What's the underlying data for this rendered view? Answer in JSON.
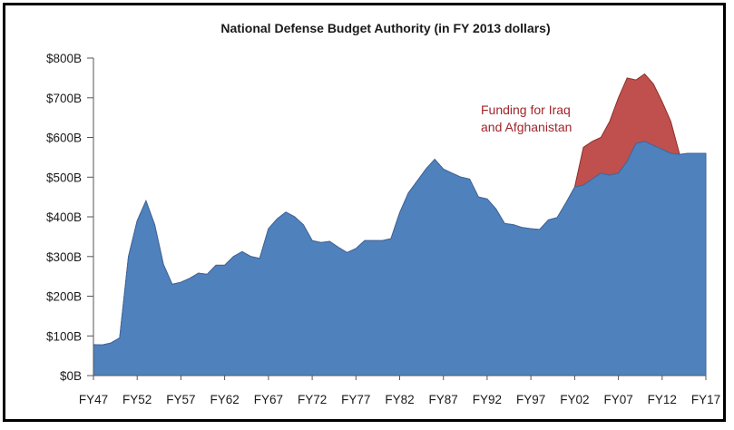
{
  "chart_data": {
    "type": "area",
    "title": "National Defense Budget Authority (in FY 2013 dollars)",
    "xlabel": "",
    "ylabel": "",
    "x_tick_labels": [
      "FY47",
      "FY52",
      "FY57",
      "FY62",
      "FY67",
      "FY72",
      "FY77",
      "FY82",
      "FY87",
      "FY92",
      "FY97",
      "FY02",
      "FY07",
      "FY12",
      "FY17"
    ],
    "y_tick_labels": [
      "$0B",
      "$100B",
      "$200B",
      "$300B",
      "$400B",
      "$500B",
      "$600B",
      "$700B",
      "$800B"
    ],
    "ylim": [
      0,
      800
    ],
    "xlim": [
      1947,
      2017
    ],
    "grid": false,
    "annotation": [
      "Funding for Iraq",
      "and Afghanistan"
    ],
    "colors": {
      "base": "#4f81bd",
      "war": "#c0504d",
      "annotation": "#a0262b"
    },
    "x": [
      1947,
      1948,
      1949,
      1950,
      1951,
      1952,
      1953,
      1954,
      1955,
      1956,
      1957,
      1958,
      1959,
      1960,
      1961,
      1962,
      1963,
      1964,
      1965,
      1966,
      1967,
      1968,
      1969,
      1970,
      1971,
      1972,
      1973,
      1974,
      1975,
      1976,
      1977,
      1978,
      1979,
      1980,
      1981,
      1982,
      1983,
      1984,
      1985,
      1986,
      1987,
      1988,
      1989,
      1990,
      1991,
      1992,
      1993,
      1994,
      1995,
      1996,
      1997,
      1998,
      1999,
      2000,
      2001,
      2002,
      2003,
      2004,
      2005,
      2006,
      2007,
      2008,
      2009,
      2010,
      2011,
      2012,
      2013,
      2014,
      2015,
      2016,
      2017
    ],
    "series": [
      {
        "name": "",
        "values": [
          78,
          77,
          82,
          95,
          300,
          390,
          440,
          380,
          280,
          230,
          235,
          245,
          258,
          255,
          278,
          278,
          300,
          312,
          300,
          295,
          370,
          395,
          412,
          400,
          380,
          340,
          335,
          338,
          323,
          310,
          320,
          340,
          340,
          340,
          345,
          410,
          460,
          490,
          520,
          545,
          520,
          510,
          500,
          495,
          450,
          445,
          420,
          383,
          380,
          373,
          370,
          368,
          392,
          398,
          435,
          475,
          480,
          495,
          510,
          505,
          510,
          540,
          585,
          590,
          580,
          570,
          560,
          557,
          560,
          560,
          560
        ]
      },
      {
        "name": "Funding for Iraq and Afghanistan",
        "values": [
          78,
          77,
          82,
          95,
          300,
          390,
          440,
          380,
          280,
          230,
          235,
          245,
          258,
          255,
          278,
          278,
          300,
          312,
          300,
          295,
          370,
          395,
          412,
          400,
          380,
          340,
          335,
          338,
          323,
          310,
          320,
          340,
          340,
          340,
          345,
          410,
          460,
          490,
          520,
          545,
          520,
          510,
          500,
          495,
          450,
          445,
          420,
          383,
          380,
          373,
          370,
          368,
          392,
          398,
          435,
          475,
          575,
          590,
          600,
          640,
          700,
          750,
          745,
          760,
          735,
          690,
          640,
          557,
          560,
          560,
          560
        ]
      }
    ]
  }
}
